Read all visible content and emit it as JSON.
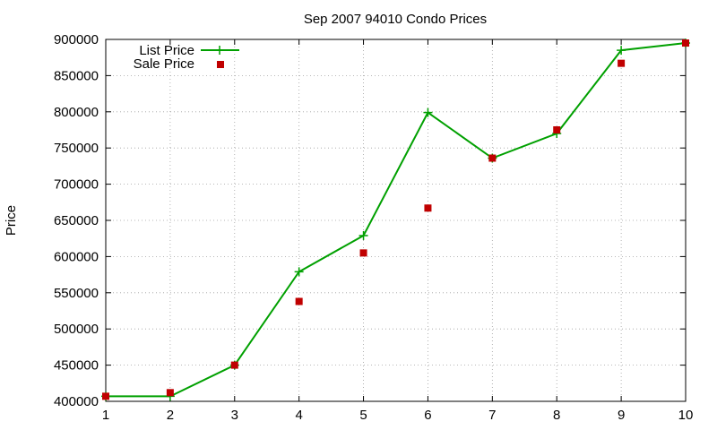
{
  "chart_data": {
    "type": "line",
    "title": "Sep 2007 94010 Condo Prices",
    "xlabel": "",
    "ylabel": "Price",
    "xlim": [
      1,
      10
    ],
    "ylim": [
      400000,
      900000
    ],
    "x_ticks": [
      1,
      2,
      3,
      4,
      5,
      6,
      7,
      8,
      9,
      10
    ],
    "y_ticks": [
      400000,
      450000,
      500000,
      550000,
      600000,
      650000,
      700000,
      750000,
      800000,
      850000,
      900000
    ],
    "grid": true,
    "legend_position": "top-left",
    "x": [
      1,
      2,
      3,
      4,
      5,
      6,
      7,
      8,
      9,
      10
    ],
    "series": [
      {
        "name": "List Price",
        "style": "line-with-plus-markers",
        "color": "#00a000",
        "values": [
          407000,
          407000,
          450000,
          579000,
          629000,
          799000,
          736000,
          770000,
          885000,
          895000
        ]
      },
      {
        "name": "Sale Price",
        "style": "square-markers",
        "color": "#c00000",
        "values": [
          407000,
          412000,
          450000,
          538000,
          605000,
          667000,
          736000,
          775000,
          867000,
          895000
        ]
      }
    ]
  }
}
